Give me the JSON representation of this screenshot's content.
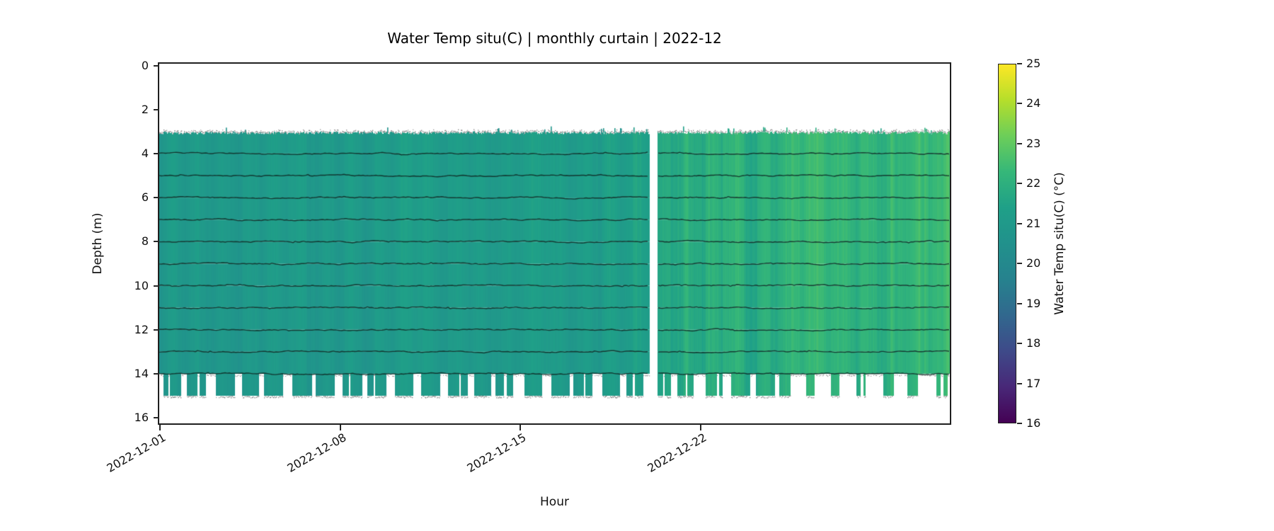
{
  "chart_data": {
    "type": "heatmap",
    "title": "Water Temp situ(C) | monthly curtain | 2022-12",
    "xlabel": "Hour",
    "ylabel": "Depth (m)",
    "x_ticks": [
      {
        "day": 0,
        "label": "2022-12-01"
      },
      {
        "day": 7,
        "label": "2022-12-08"
      },
      {
        "day": 14,
        "label": "2022-12-15"
      },
      {
        "day": 21,
        "label": "2022-12-22"
      }
    ],
    "y_ticks": [
      0,
      2,
      4,
      6,
      8,
      10,
      12,
      14,
      16
    ],
    "x_start_day": 0,
    "x_end_day": 30.67,
    "ylim": [
      16.3,
      -0.1
    ],
    "depth_top_m": 3.05,
    "depth_main_bottom_m": 14.0,
    "depth_deep_bottom_m": 15.0,
    "sensor_line_depths_m": [
      4,
      5,
      6,
      7,
      8,
      9,
      10,
      11,
      12,
      13,
      14
    ],
    "data_gap_days": [
      19.0,
      19.3
    ],
    "daily_mean_temp_c": [
      21.0,
      21.1,
      21.0,
      20.9,
      21.1,
      21.2,
      21.0,
      21.1,
      21.0,
      21.2,
      21.3,
      21.1,
      21.2,
      21.1,
      21.2,
      21.3,
      21.1,
      21.2,
      21.3,
      21.5,
      21.9,
      22.0,
      22.1,
      21.9,
      22.2,
      22.3,
      22.3,
      22.2,
      22.1,
      22.3,
      22.4
    ],
    "diurnal_amplitude_c": 0.18,
    "stripe_variability_c": {
      "before_gap": 0.18,
      "after_gap": 0.3
    },
    "deep_cast": {
      "early_fraction": 0.72,
      "late_fraction": 0.38,
      "change_day": 24
    },
    "colorbar": {
      "label": "Water Temp situ(C) (°C)",
      "vmin": 16,
      "vmax": 25,
      "ticks": [
        16,
        17,
        18,
        19,
        20,
        21,
        22,
        23,
        24,
        25
      ],
      "colormap": "viridis",
      "viridis_stops": [
        "#440154",
        "#482878",
        "#3e4a89",
        "#31688e",
        "#26828e",
        "#21918c",
        "#1fa088",
        "#35b779",
        "#6cce59",
        "#b5de2b",
        "#fde725"
      ]
    }
  }
}
